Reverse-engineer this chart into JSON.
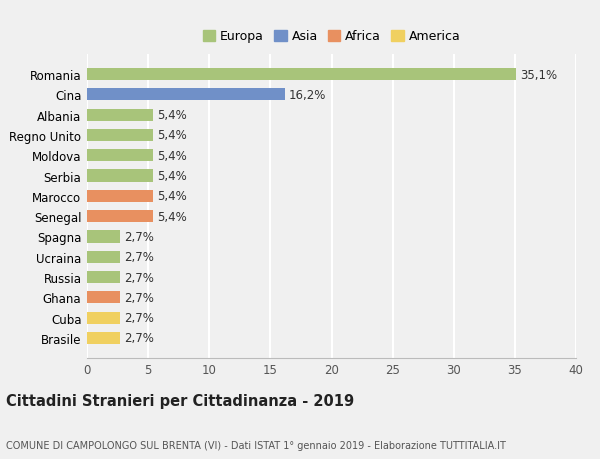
{
  "categories": [
    "Brasile",
    "Cuba",
    "Ghana",
    "Russia",
    "Ucraina",
    "Spagna",
    "Senegal",
    "Marocco",
    "Serbia",
    "Moldova",
    "Regno Unito",
    "Albania",
    "Cina",
    "Romania"
  ],
  "values": [
    2.7,
    2.7,
    2.7,
    2.7,
    2.7,
    2.7,
    5.4,
    5.4,
    5.4,
    5.4,
    5.4,
    5.4,
    16.2,
    35.1
  ],
  "colors": [
    "#f0d060",
    "#f0d060",
    "#e89060",
    "#a8c47a",
    "#a8c47a",
    "#a8c47a",
    "#e89060",
    "#e89060",
    "#a8c47a",
    "#a8c47a",
    "#a8c47a",
    "#a8c47a",
    "#7090c8",
    "#a8c47a"
  ],
  "labels": [
    "2,7%",
    "2,7%",
    "2,7%",
    "2,7%",
    "2,7%",
    "2,7%",
    "5,4%",
    "5,4%",
    "5,4%",
    "5,4%",
    "5,4%",
    "5,4%",
    "16,2%",
    "35,1%"
  ],
  "xlim": [
    0,
    40
  ],
  "xticks": [
    0,
    5,
    10,
    15,
    20,
    25,
    30,
    35,
    40
  ],
  "legend_labels": [
    "Europa",
    "Asia",
    "Africa",
    "America"
  ],
  "legend_colors": [
    "#a8c47a",
    "#7090c8",
    "#e89060",
    "#f0d060"
  ],
  "title": "Cittadini Stranieri per Cittadinanza - 2019",
  "subtitle": "COMUNE DI CAMPOLONGO SUL BRENTA (VI) - Dati ISTAT 1° gennaio 2019 - Elaborazione TUTTITALIA.IT",
  "bg_color": "#f0f0f0",
  "grid_color": "#ffffff",
  "bar_height": 0.6,
  "label_fontsize": 8.5,
  "tick_fontsize": 8.5,
  "title_fontsize": 10.5,
  "subtitle_fontsize": 7.0
}
